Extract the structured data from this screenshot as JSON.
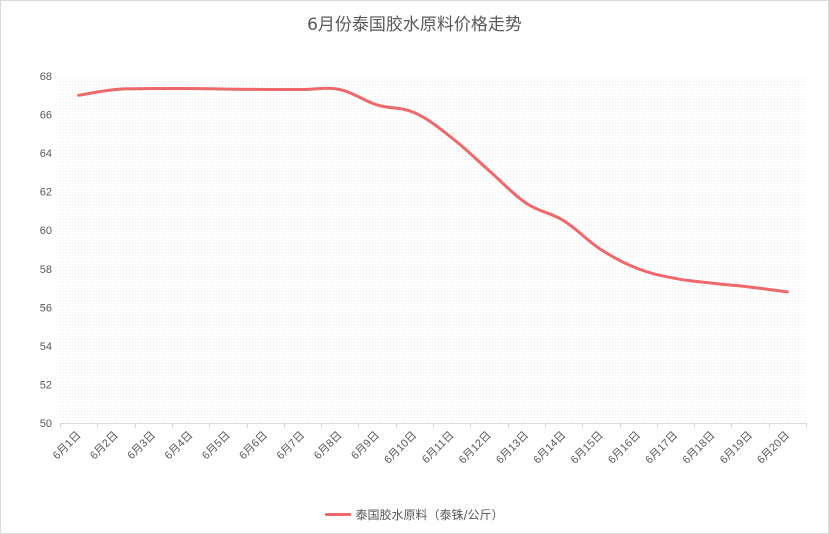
{
  "chart_data": {
    "type": "line",
    "title": "6月份泰国胶水原料价格走势",
    "xlabel": "",
    "ylabel": "",
    "categories": [
      "6月1日",
      "6月2日",
      "6月3日",
      "6月4日",
      "6月5日",
      "6月6日",
      "6月7日",
      "6月8日",
      "6月9日",
      "6月10日",
      "6月11日",
      "6月12日",
      "6月13日",
      "6月14日",
      "6月15日",
      "6月16日",
      "6月17日",
      "6月18日",
      "6月19日",
      "6月20日"
    ],
    "ylim": [
      50,
      68
    ],
    "yticks": [
      50,
      52,
      54,
      56,
      58,
      60,
      62,
      64,
      66,
      68
    ],
    "series": [
      {
        "name": "泰国胶水原料（泰铢/公斤）",
        "color": "#f0686a",
        "values": [
          67.0,
          67.3,
          67.35,
          67.35,
          67.32,
          67.3,
          67.3,
          67.3,
          66.5,
          66.1,
          64.8,
          63.1,
          61.4,
          60.5,
          59.0,
          58.0,
          57.5,
          57.25,
          57.05,
          56.8
        ]
      }
    ],
    "grid": false,
    "plot_background": "dotted",
    "legend_position": "bottom"
  }
}
